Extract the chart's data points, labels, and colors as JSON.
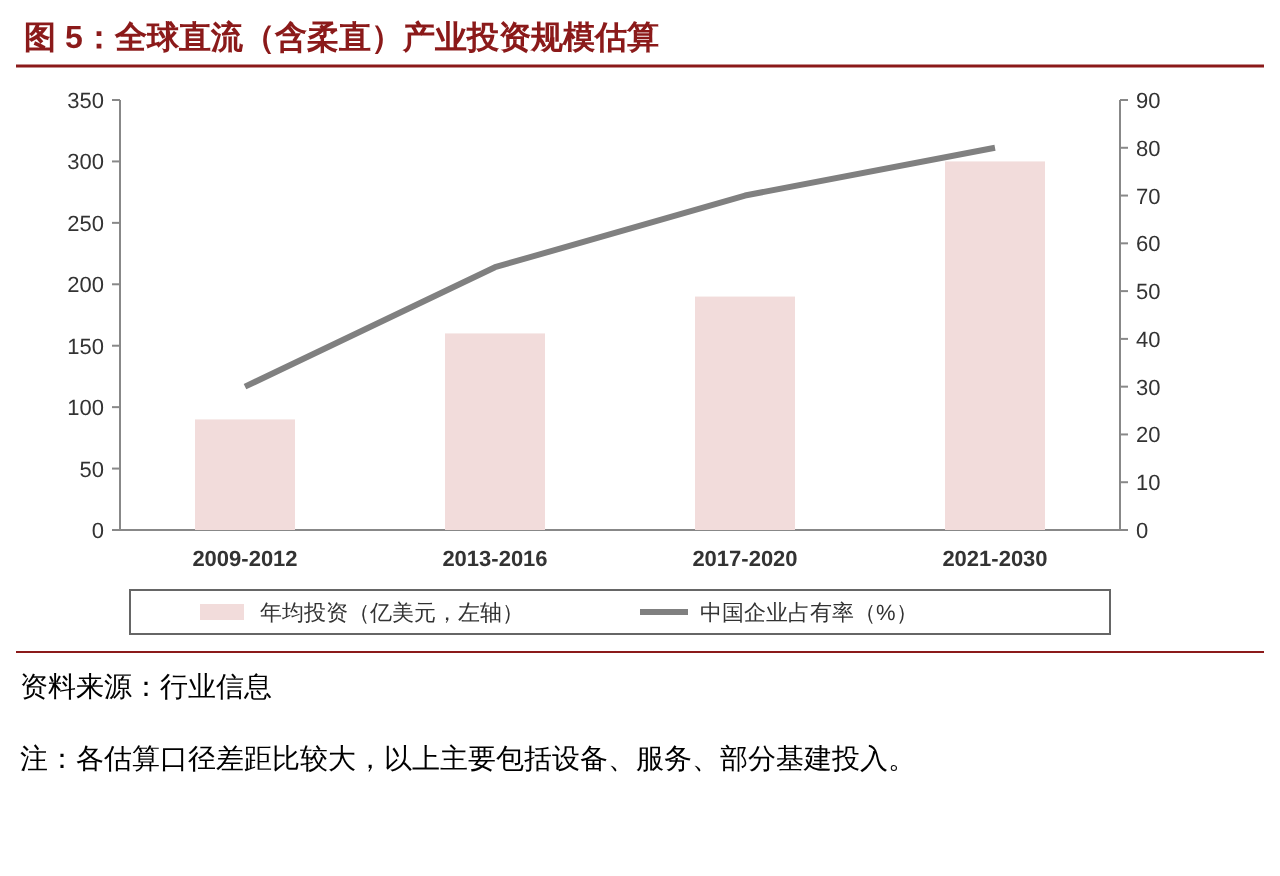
{
  "chart_data": {
    "type": "bar",
    "title": "图 5：全球直流（含柔直）产业投资规模估算",
    "categories": [
      "2009-2012",
      "2013-2016",
      "2017-2020",
      "2021-2030"
    ],
    "series": [
      {
        "name": "年均投资（亿美元，左轴）",
        "color": "#f2dcdb",
        "values": [
          90,
          160,
          190,
          300
        ]
      },
      {
        "name": "中国企业占有率（%）",
        "type": "line",
        "axis": "y2",
        "color": "#808080",
        "values": [
          30,
          55,
          70,
          80
        ]
      }
    ],
    "ylim": [
      0,
      350
    ],
    "yticks": [
      0,
      50,
      100,
      150,
      200,
      250,
      300,
      350
    ],
    "y2lim": [
      0,
      90
    ],
    "y2ticks": [
      0,
      10,
      20,
      30,
      40,
      50,
      60,
      70,
      80,
      90
    ],
    "legend": "bottom",
    "grid": false,
    "annotations": [
      "资料来源：行业信息",
      "注：各估算口径差距比较大，以上主要包括设备、服务、部分基建投入。"
    ]
  }
}
